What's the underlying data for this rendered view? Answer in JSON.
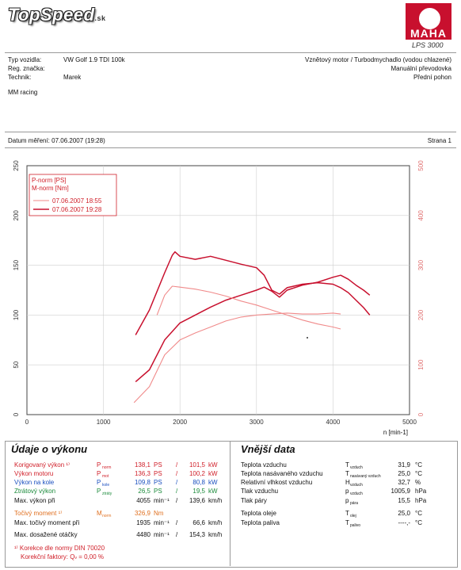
{
  "watermark": {
    "text": "TopSpeed",
    "suffix": ".sk"
  },
  "logo": {
    "brand": "MAHA",
    "model": "LPS 3000"
  },
  "header": {
    "fields": [
      {
        "label": "Typ vozidla:",
        "value": "VW Golf 1.9 TDI 100k"
      },
      {
        "label": "Reg. značka:",
        "value": ""
      },
      {
        "label": "Technik:",
        "value": "Marek"
      }
    ],
    "engine": "Vznětový motor / Turbodmychadlo (vodou chlazené)",
    "gearbox": "Manuální převodovka",
    "drive": "Přední pohon",
    "customer": "MM racing",
    "date": "Datum měření: 07.06.2007 (19:28)",
    "page": "Strana 1"
  },
  "chart_data": {
    "type": "line",
    "title": "",
    "xlabel": "n [min-1]",
    "xlim": [
      0,
      5000
    ],
    "ylim_left": [
      0,
      250
    ],
    "ylim_right": [
      0,
      500
    ],
    "x_ticks": [
      "0",
      "1000",
      "2000",
      "3000",
      "4000",
      "5000"
    ],
    "y_left_ticks": [
      "0",
      "50",
      "100",
      "150",
      "200",
      "250"
    ],
    "y_right_ticks": [
      "0",
      "100",
      "200",
      "300",
      "400",
      "500"
    ],
    "legend": {
      "labels": [
        "P-norm [PS]",
        "M-norm [Nm]"
      ],
      "runs": [
        "07.06.2007 18:55",
        "07.06.2007 19:28"
      ]
    },
    "series": [
      {
        "name": "07.06.2007 19:28",
        "axis": "left",
        "color": "#c8102e",
        "x": [
          1420,
          1600,
          1800,
          2000,
          2200,
          2400,
          2600,
          2800,
          3000,
          3100,
          3200,
          3300,
          3400,
          3600,
          3800,
          4000,
          4100,
          4200,
          4300,
          4400,
          4480
        ],
        "y": [
          33,
          45,
          75,
          92,
          100,
          108,
          115,
          120,
          125,
          128,
          124,
          118,
          125,
          130,
          133,
          138,
          140,
          136,
          130,
          125,
          120
        ]
      },
      {
        "name": "07.06.2007 19:28",
        "axis": "right",
        "color": "#c8102e",
        "x": [
          1420,
          1600,
          1800,
          1900,
          1935,
          2000,
          2200,
          2400,
          2600,
          2800,
          3000,
          3100,
          3200,
          3300,
          3400,
          3600,
          3800,
          4000,
          4100,
          4200,
          4300,
          4400,
          4480
        ],
        "y": [
          160,
          210,
          285,
          320,
          326.9,
          318,
          312,
          318,
          310,
          302,
          295,
          280,
          250,
          242,
          255,
          262,
          265,
          262,
          255,
          245,
          230,
          215,
          200
        ]
      },
      {
        "name": "07.06.2007 18:55",
        "axis": "left",
        "color": "#f08a8a",
        "x": [
          1400,
          1600,
          1800,
          2000,
          2200,
          2400,
          2600,
          2800,
          3000,
          3200,
          3400,
          3600,
          3800,
          4000,
          4100
        ],
        "y": [
          12,
          28,
          60,
          75,
          82,
          88,
          94,
          98,
          100,
          101,
          102,
          101,
          101,
          102,
          101
        ]
      },
      {
        "name": "07.06.2007 18:55",
        "axis": "right",
        "color": "#f08a8a",
        "x": [
          1700,
          1800,
          1900,
          2000,
          2200,
          2400,
          2600,
          2800,
          3000,
          3200,
          3400,
          3600,
          3800,
          4000,
          4100
        ],
        "y": [
          200,
          240,
          258,
          256,
          252,
          246,
          238,
          228,
          220,
          210,
          200,
          190,
          182,
          176,
          172
        ]
      }
    ]
  },
  "vykon": {
    "title": "Údaje o výkonu",
    "rows": [
      {
        "label": "Korigovaný výkon ¹⁾",
        "sym": "P",
        "sub": "norm",
        "v1": "138,1",
        "u1": "PS",
        "sep": "/",
        "v2": "101,5",
        "u2": "kW",
        "cls": "c-red"
      },
      {
        "label": "Výkon motoru",
        "sym": "P",
        "sub": "mot",
        "v1": "136,3",
        "u1": "PS",
        "sep": "/",
        "v2": "100,2",
        "u2": "kW",
        "cls": "c-red"
      },
      {
        "label": "Výkon na kole",
        "sym": "P",
        "sub": "kole",
        "v1": "109,8",
        "u1": "PS",
        "sep": "/",
        "v2": "80,8",
        "u2": "kW",
        "cls": "c-blue"
      },
      {
        "label": "Ztrátový výkon",
        "sym": "P",
        "sub": "ztráty",
        "v1": "26,5",
        "u1": "PS",
        "sep": "/",
        "v2": "19,5",
        "u2": "kW",
        "cls": "c-green"
      },
      {
        "label": "Max. výkon při",
        "sym": "",
        "sub": "",
        "v1": "4055",
        "u1": "min⁻¹",
        "sep": "/",
        "v2": "139,6",
        "u2": "km/h",
        "cls": ""
      },
      {
        "label": "Točivý moment ¹⁾",
        "sym": "M",
        "sub": "norm",
        "v1": "326,9",
        "u1": "Nm",
        "sep": "",
        "v2": "",
        "u2": "",
        "cls": "c-orange"
      },
      {
        "label": "Max. točivý moment při",
        "sym": "",
        "sub": "",
        "v1": "1935",
        "u1": "min⁻¹",
        "sep": "/",
        "v2": "66,6",
        "u2": "km/h",
        "cls": ""
      },
      {
        "label": "Max. dosažené otáčky",
        "sym": "",
        "sub": "",
        "v1": "4480",
        "u1": "min⁻¹",
        "sep": "/",
        "v2": "154,3",
        "u2": "km/h",
        "cls": ""
      }
    ],
    "foot1": "¹⁾ Korekce dle normy DIN 70020",
    "foot2": "Korekční faktory: Q",
    "foot2sub": "v",
    "foot2val": "=  0,00 %"
  },
  "vnejsi": {
    "title": "Vnější data",
    "rows": [
      {
        "label": "Teplota vzduchu",
        "sym": "T",
        "sub": "vzduch",
        "val": "31,9",
        "unit": "°C"
      },
      {
        "label": "Teplota nasávaného vzduchu",
        "sym": "T",
        "sub": "nasávaný vzduch",
        "val": "25,0",
        "unit": "°C"
      },
      {
        "label": "Relativní vlhkost vzduchu",
        "sym": "H",
        "sub": "vzduch",
        "val": "32,7",
        "unit": "%"
      },
      {
        "label": "Tlak vzduchu",
        "sym": "p",
        "sub": "vzduch",
        "val": "1005,9",
        "unit": "hPa"
      },
      {
        "label": "Tlak páry",
        "sym": "p",
        "sub": "pára",
        "val": "15,5",
        "unit": "hPa"
      },
      {
        "label": "Teplota oleje",
        "sym": "T",
        "sub": "olej",
        "val": "25,0",
        "unit": "°C"
      },
      {
        "label": "Teplota paliva",
        "sym": "T",
        "sub": "palivo",
        "val": "----,-",
        "unit": "°C"
      }
    ]
  }
}
